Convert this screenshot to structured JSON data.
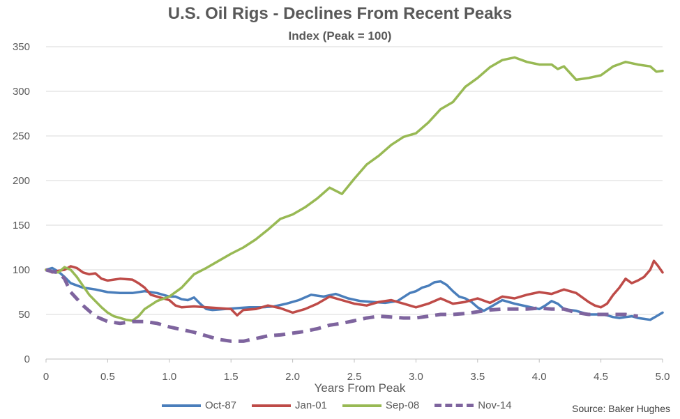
{
  "title": "U.S. Oil Rigs - Declines From Recent Peaks",
  "subtitle": "Index (Peak = 100)",
  "source": "Source: Baker Hughes",
  "chart_data": {
    "type": "line",
    "xlabel": "Years From Peak",
    "ylabel": "",
    "xlim": [
      0,
      5.0
    ],
    "ylim": [
      0,
      350
    ],
    "xticks": [
      "0",
      "0.5",
      "1.0",
      "1.5",
      "2.0",
      "2.5",
      "3.0",
      "3.5",
      "4.0",
      "4.5",
      "5.0"
    ],
    "yticks": [
      "0",
      "50",
      "100",
      "150",
      "200",
      "250",
      "300",
      "350"
    ],
    "grid": "horizontal",
    "legend_position": "bottom",
    "series": [
      {
        "name": "Oct-87",
        "color": "#4a7ebb",
        "dashed": false,
        "x": [
          0,
          0.05,
          0.1,
          0.15,
          0.2,
          0.3,
          0.35,
          0.4,
          0.5,
          0.6,
          0.7,
          0.8,
          0.9,
          1.0,
          1.05,
          1.1,
          1.15,
          1.2,
          1.25,
          1.3,
          1.35,
          1.45,
          1.55,
          1.65,
          1.75,
          1.85,
          1.95,
          2.05,
          2.15,
          2.25,
          2.35,
          2.45,
          2.55,
          2.65,
          2.75,
          2.85,
          2.95,
          3.0,
          3.05,
          3.1,
          3.15,
          3.2,
          3.25,
          3.3,
          3.35,
          3.4,
          3.45,
          3.5,
          3.55,
          3.6,
          3.65,
          3.7,
          3.75,
          3.8,
          3.9,
          4.0,
          4.05,
          4.1,
          4.15,
          4.2,
          4.3,
          4.4,
          4.5,
          4.55,
          4.6,
          4.65,
          4.7,
          4.75,
          4.8,
          4.85,
          4.9,
          4.95,
          5.0
        ],
        "y": [
          100,
          102,
          98,
          92,
          85,
          80,
          79,
          78,
          75,
          74,
          74,
          76,
          74,
          70,
          70,
          67,
          66,
          69,
          62,
          56,
          55,
          56,
          57,
          58,
          58,
          59,
          62,
          66,
          72,
          70,
          73,
          68,
          65,
          64,
          63,
          65,
          74,
          76,
          80,
          82,
          86,
          87,
          83,
          76,
          70,
          68,
          64,
          58,
          54,
          58,
          62,
          66,
          64,
          62,
          59,
          56,
          60,
          65,
          62,
          56,
          54,
          50,
          50,
          49,
          47,
          46,
          47,
          48,
          46,
          45,
          44,
          48,
          52
        ]
      },
      {
        "name": "Jan-01",
        "color": "#be4b48",
        "dashed": false,
        "x": [
          0,
          0.05,
          0.1,
          0.15,
          0.2,
          0.25,
          0.3,
          0.35,
          0.4,
          0.45,
          0.5,
          0.6,
          0.7,
          0.75,
          0.8,
          0.85,
          0.9,
          1.0,
          1.05,
          1.1,
          1.2,
          1.3,
          1.4,
          1.5,
          1.55,
          1.6,
          1.7,
          1.8,
          1.9,
          2.0,
          2.1,
          2.2,
          2.3,
          2.4,
          2.5,
          2.6,
          2.7,
          2.8,
          2.9,
          3.0,
          3.1,
          3.2,
          3.3,
          3.4,
          3.5,
          3.6,
          3.7,
          3.8,
          3.9,
          4.0,
          4.1,
          4.2,
          4.3,
          4.4,
          4.45,
          4.5,
          4.55,
          4.6,
          4.65,
          4.7,
          4.75,
          4.8,
          4.85,
          4.9,
          4.93,
          4.96,
          5.0
        ],
        "y": [
          100,
          97,
          99,
          100,
          104,
          102,
          97,
          95,
          96,
          90,
          88,
          90,
          89,
          85,
          80,
          72,
          70,
          66,
          60,
          58,
          59,
          58,
          57,
          56,
          49,
          55,
          56,
          60,
          57,
          52,
          56,
          62,
          70,
          66,
          62,
          60,
          64,
          66,
          62,
          58,
          62,
          68,
          62,
          64,
          68,
          63,
          70,
          68,
          72,
          75,
          73,
          78,
          74,
          64,
          60,
          58,
          62,
          72,
          80,
          90,
          85,
          88,
          92,
          100,
          110,
          105,
          97
        ]
      },
      {
        "name": "Sep-08",
        "color": "#98b954",
        "dashed": false,
        "x": [
          0,
          0.05,
          0.1,
          0.15,
          0.2,
          0.25,
          0.3,
          0.35,
          0.4,
          0.45,
          0.5,
          0.55,
          0.6,
          0.65,
          0.7,
          0.75,
          0.8,
          0.9,
          1.0,
          1.1,
          1.2,
          1.3,
          1.4,
          1.5,
          1.6,
          1.7,
          1.8,
          1.9,
          2.0,
          2.1,
          2.2,
          2.3,
          2.4,
          2.5,
          2.6,
          2.7,
          2.8,
          2.9,
          3.0,
          3.1,
          3.2,
          3.3,
          3.4,
          3.5,
          3.6,
          3.7,
          3.8,
          3.9,
          4.0,
          4.1,
          4.15,
          4.2,
          4.3,
          4.4,
          4.5,
          4.6,
          4.7,
          4.8,
          4.9,
          4.95,
          5.0
        ],
        "y": [
          100,
          98,
          97,
          103,
          100,
          92,
          82,
          72,
          65,
          58,
          52,
          48,
          46,
          44,
          43,
          48,
          56,
          65,
          70,
          80,
          95,
          102,
          110,
          118,
          125,
          134,
          145,
          157,
          162,
          170,
          180,
          192,
          185,
          202,
          218,
          228,
          240,
          249,
          253,
          265,
          280,
          288,
          305,
          315,
          327,
          335,
          338,
          333,
          330,
          330,
          325,
          328,
          313,
          315,
          318,
          328,
          333,
          330,
          328,
          322,
          323
        ]
      },
      {
        "name": "Nov-14",
        "color": "#7e649e",
        "dashed": true,
        "x": [
          0,
          0.05,
          0.1,
          0.15,
          0.2,
          0.3,
          0.4,
          0.5,
          0.6,
          0.7,
          0.8,
          0.9,
          1.0,
          1.1,
          1.2,
          1.3,
          1.4,
          1.5,
          1.6,
          1.7,
          1.8,
          1.9,
          2.0,
          2.1,
          2.2,
          2.3,
          2.4,
          2.5,
          2.6,
          2.7,
          2.8,
          2.9,
          3.0,
          3.1,
          3.2,
          3.3,
          3.4,
          3.5,
          3.6,
          3.7,
          3.8,
          3.9,
          4.0,
          4.1,
          4.2,
          4.3,
          4.4,
          4.5,
          4.6,
          4.7,
          4.8
        ],
        "y": [
          100,
          98,
          97,
          90,
          75,
          60,
          48,
          42,
          40,
          42,
          42,
          40,
          36,
          33,
          30,
          26,
          22,
          20,
          20,
          23,
          26,
          27,
          29,
          31,
          34,
          38,
          40,
          43,
          46,
          48,
          47,
          46,
          46,
          48,
          50,
          50,
          51,
          53,
          55,
          56,
          56,
          56,
          57,
          56,
          56,
          52,
          50,
          50,
          50,
          50,
          48
        ]
      }
    ]
  }
}
